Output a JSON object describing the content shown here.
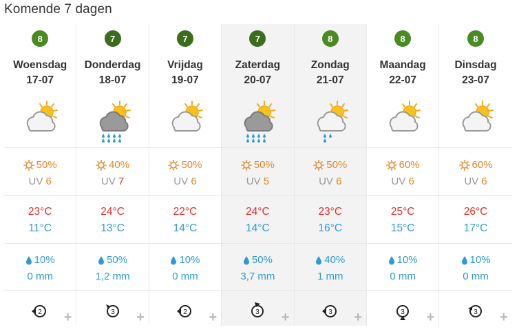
{
  "title": "Komende 7 dagen",
  "colors": {
    "score_green": "#4a8a23",
    "sun_orange": "#e8862a",
    "temp_max_red": "#e0332a",
    "temp_min_blue": "#2f9bd4",
    "shaded_column": "#f3f3f3"
  },
  "days": [
    {
      "score": "8",
      "day": "Woensdag",
      "date": "17-07",
      "icon": "partly-cloudy-icon",
      "sun": "50%",
      "uv_label": "UV",
      "uv": "6",
      "tmax": "23°C",
      "tmin": "11°C",
      "rain_pct": "10%",
      "rain_mm": "0 mm",
      "wind": "2"
    },
    {
      "score": "7",
      "day": "Donderdag",
      "date": "18-07",
      "icon": "rain-heavy-icon",
      "sun": "40%",
      "uv_label": "UV",
      "uv": "7",
      "tmax": "24°C",
      "tmin": "13°C",
      "rain_pct": "50%",
      "rain_mm": "1,2 mm",
      "wind": "3"
    },
    {
      "score": "7",
      "day": "Vrijdag",
      "date": "19-07",
      "icon": "partly-cloudy-icon",
      "sun": "50%",
      "uv_label": "UV",
      "uv": "6",
      "tmax": "22°C",
      "tmin": "14°C",
      "rain_pct": "10%",
      "rain_mm": "0 mm",
      "wind": "2"
    },
    {
      "score": "7",
      "day": "Zaterdag",
      "date": "20-07",
      "icon": "rain-heavy-icon",
      "sun": "50%",
      "uv_label": "UV",
      "uv": "5",
      "tmax": "24°C",
      "tmin": "14°C",
      "rain_pct": "50%",
      "rain_mm": "3,7 mm",
      "wind": "3"
    },
    {
      "score": "8",
      "day": "Zondag",
      "date": "21-07",
      "icon": "rain-light-icon",
      "sun": "50%",
      "uv_label": "UV",
      "uv": "6",
      "tmax": "23°C",
      "tmin": "16°C",
      "rain_pct": "40%",
      "rain_mm": "1 mm",
      "wind": "3"
    },
    {
      "score": "8",
      "day": "Maandag",
      "date": "22-07",
      "icon": "partly-cloudy-icon",
      "sun": "60%",
      "uv_label": "UV",
      "uv": "6",
      "tmax": "25°C",
      "tmin": "15°C",
      "rain_pct": "10%",
      "rain_mm": "0 mm",
      "wind": "3"
    },
    {
      "score": "8",
      "day": "Dinsdag",
      "date": "23-07",
      "icon": "partly-cloudy-icon",
      "sun": "60%",
      "uv_label": "UV",
      "uv": "6",
      "tmax": "26°C",
      "tmin": "17°C",
      "rain_pct": "10%",
      "rain_mm": "0 mm",
      "wind": "3"
    }
  ],
  "expand_symbol": "+"
}
